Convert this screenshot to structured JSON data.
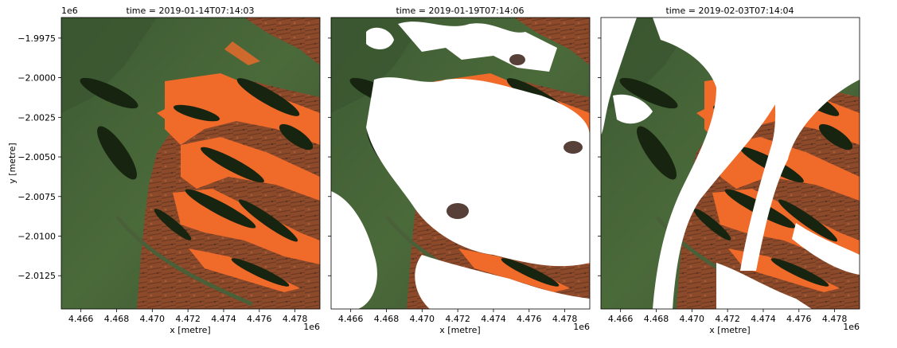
{
  "figure": {
    "panels": [
      {
        "title": "time = 2019-01-14T07:14:03",
        "cloud_masked": false
      },
      {
        "title": "time = 2019-01-19T07:14:06",
        "cloud_masked": true
      },
      {
        "title": "time = 2019-02-03T07:14:04",
        "cloud_masked": true
      }
    ],
    "xlabel": "x [metre]",
    "ylabel": "y [metre]",
    "x_offset_label": "1e6",
    "y_offset_label": "1e6",
    "x_ticks": [
      "4.466",
      "4.468",
      "4.470",
      "4.472",
      "4.474",
      "4.476",
      "4.478"
    ],
    "y_ticks": [
      "−1.9975",
      "−2.0000",
      "−2.0025",
      "−2.0050",
      "−2.0075",
      "−2.0100",
      "−2.0125"
    ],
    "x_tick_values": [
      4.466,
      4.468,
      4.47,
      4.472,
      4.474,
      4.476,
      4.478
    ],
    "y_tick_values": [
      -1.9975,
      -2.0,
      -2.0025,
      -2.005,
      -2.0075,
      -2.01,
      -2.0125
    ],
    "x_range": [
      4.4649,
      4.4794
    ],
    "y_range": [
      -2.0146,
      -1.9962
    ],
    "colors": {
      "water": "#3f5a34",
      "sediment": "#f06a2a",
      "land": "#8a4a2a",
      "vegetation": "#1d2a18",
      "cloud_mask": "#ffffff"
    }
  }
}
